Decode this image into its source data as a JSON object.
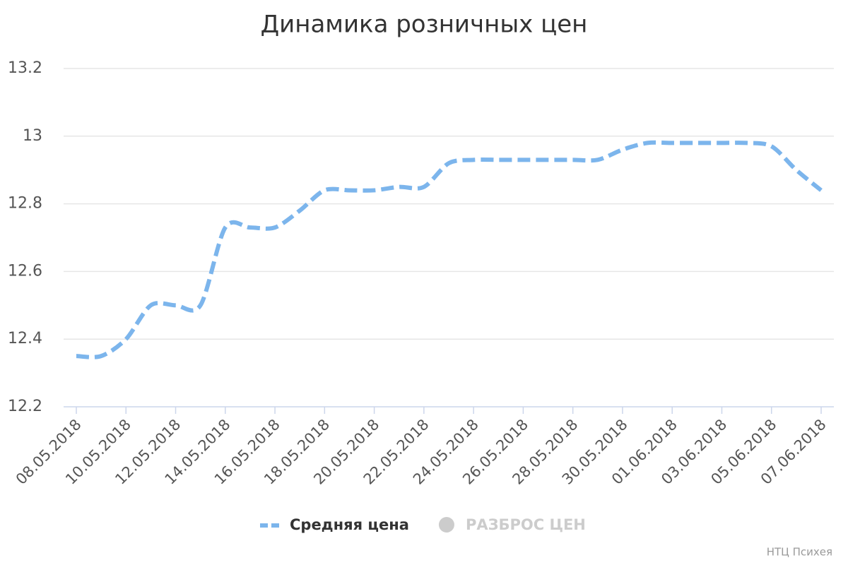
{
  "chart_data": {
    "type": "line",
    "title": "Динамика розничных цен",
    "categories": [
      "08.05.2018",
      null,
      "10.05.2018",
      null,
      "12.05.2018",
      null,
      "14.05.2018",
      null,
      "16.05.2018",
      null,
      "18.05.2018",
      null,
      "20.05.2018",
      null,
      "22.05.2018",
      null,
      "24.05.2018",
      null,
      "26.05.2018",
      null,
      "28.05.2018",
      null,
      "30.05.2018",
      null,
      "01.06.2018",
      null,
      "03.06.2018",
      null,
      "05.06.2018",
      null,
      "07.06.2018"
    ],
    "series": [
      {
        "name": "Средняя цена",
        "color": "#7cb5ec",
        "dashed": true,
        "values": [
          12.35,
          12.35,
          12.4,
          12.5,
          12.5,
          12.5,
          12.73,
          12.73,
          12.73,
          12.78,
          12.84,
          12.84,
          12.84,
          12.85,
          12.85,
          12.92,
          12.93,
          12.93,
          12.93,
          12.93,
          12.93,
          12.93,
          12.96,
          12.98,
          12.98,
          12.98,
          12.98,
          12.98,
          12.97,
          12.9,
          12.84
        ]
      },
      {
        "name": "РАЗБРОС ЦЕН",
        "color": "#cccccc",
        "visible": false
      }
    ],
    "ylim": [
      12.2,
      13.2
    ],
    "yticks": [
      12.2,
      12.4,
      12.6,
      12.8,
      13,
      13.2
    ],
    "grid": true,
    "credits": "НТЦ Психея"
  }
}
